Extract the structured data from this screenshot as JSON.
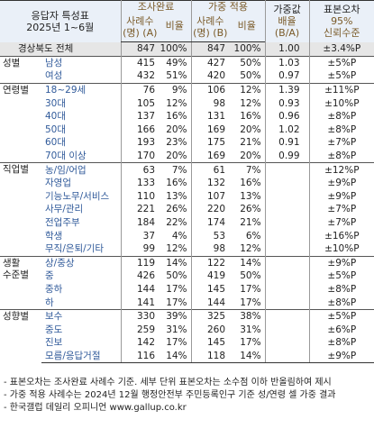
{
  "header": {
    "title_line1": "응답자 특성표",
    "title_line2": "2025년 1~6월",
    "completed_group": "조사완료",
    "weighted_group": "가중 적용",
    "weight_ratio_l1": "가중값",
    "weight_ratio_l2": "배율",
    "weight_ratio_l3": "(B/A)",
    "std_err_l1": "표본오차",
    "std_err_l2": "95%",
    "std_err_l3": "신뢰수준",
    "count_a_l1": "사례수",
    "count_a_l2": "(명) (A)",
    "ratio_label": "비율",
    "count_b_l1": "사례수",
    "count_b_l2": "(명) (B)"
  },
  "total": {
    "label": "경상북도 전체",
    "a": "847",
    "ra": "100%",
    "b": "847",
    "rb": "100%",
    "w": "1.00",
    "e": "±3.4%P"
  },
  "sections": [
    {
      "name": "성별",
      "rows": [
        {
          "label": "남성",
          "a": "415",
          "ra": "49%",
          "b": "427",
          "rb": "50%",
          "w": "1.03",
          "e": "±5%P"
        },
        {
          "label": "여성",
          "a": "432",
          "ra": "51%",
          "b": "420",
          "rb": "50%",
          "w": "0.97",
          "e": "±5%P"
        }
      ]
    },
    {
      "name": "연령별",
      "rows": [
        {
          "label": "18~29세",
          "a": "76",
          "ra": "9%",
          "b": "106",
          "rb": "12%",
          "w": "1.39",
          "e": "±11%P"
        },
        {
          "label": "30대",
          "a": "105",
          "ra": "12%",
          "b": "98",
          "rb": "12%",
          "w": "0.93",
          "e": "±10%P"
        },
        {
          "label": "40대",
          "a": "137",
          "ra": "16%",
          "b": "131",
          "rb": "16%",
          "w": "0.96",
          "e": "±8%P"
        },
        {
          "label": "50대",
          "a": "166",
          "ra": "20%",
          "b": "169",
          "rb": "20%",
          "w": "1.02",
          "e": "±8%P"
        },
        {
          "label": "60대",
          "a": "193",
          "ra": "23%",
          "b": "175",
          "rb": "21%",
          "w": "0.91",
          "e": "±7%P"
        },
        {
          "label": "70대 이상",
          "a": "170",
          "ra": "20%",
          "b": "169",
          "rb": "20%",
          "w": "0.99",
          "e": "±8%P"
        }
      ]
    },
    {
      "name": "직업별",
      "rows": [
        {
          "label": "농/임/어업",
          "a": "63",
          "ra": "7%",
          "b": "61",
          "rb": "7%",
          "w": "",
          "e": "±12%P"
        },
        {
          "label": "자영업",
          "a": "133",
          "ra": "16%",
          "b": "132",
          "rb": "16%",
          "w": "",
          "e": "±9%P"
        },
        {
          "label": "기능노무/서비스",
          "a": "110",
          "ra": "13%",
          "b": "107",
          "rb": "13%",
          "w": "",
          "e": "±9%P"
        },
        {
          "label": "사무/관리",
          "a": "221",
          "ra": "26%",
          "b": "220",
          "rb": "26%",
          "w": "",
          "e": "±7%P"
        },
        {
          "label": "전업주부",
          "a": "184",
          "ra": "22%",
          "b": "174",
          "rb": "21%",
          "w": "",
          "e": "±7%P"
        },
        {
          "label": "학생",
          "a": "37",
          "ra": "4%",
          "b": "53",
          "rb": "6%",
          "w": "",
          "e": "±16%P"
        },
        {
          "label": "무직/은퇴/기타",
          "a": "99",
          "ra": "12%",
          "b": "98",
          "rb": "12%",
          "w": "",
          "e": "±10%P"
        }
      ]
    },
    {
      "name": "생활",
      "name2": "수준별",
      "rows": [
        {
          "label": "상/중상",
          "a": "119",
          "ra": "14%",
          "b": "122",
          "rb": "14%",
          "w": "",
          "e": "±9%P"
        },
        {
          "label": "중",
          "a": "426",
          "ra": "50%",
          "b": "419",
          "rb": "50%",
          "w": "",
          "e": "±5%P"
        },
        {
          "label": "중하",
          "a": "144",
          "ra": "17%",
          "b": "145",
          "rb": "17%",
          "w": "",
          "e": "±8%P"
        },
        {
          "label": "하",
          "a": "141",
          "ra": "17%",
          "b": "144",
          "rb": "17%",
          "w": "",
          "e": "±8%P"
        }
      ]
    },
    {
      "name": "성향별",
      "rows": [
        {
          "label": "보수",
          "a": "330",
          "ra": "39%",
          "b": "325",
          "rb": "38%",
          "w": "",
          "e": "±5%P"
        },
        {
          "label": "중도",
          "a": "259",
          "ra": "31%",
          "b": "260",
          "rb": "31%",
          "w": "",
          "e": "±6%P"
        },
        {
          "label": "진보",
          "a": "142",
          "ra": "17%",
          "b": "145",
          "rb": "17%",
          "w": "",
          "e": "±8%P"
        },
        {
          "label": "모름/응답거절",
          "a": "116",
          "ra": "14%",
          "b": "118",
          "rb": "14%",
          "w": "",
          "e": "±9%P"
        }
      ]
    }
  ],
  "notes": [
    "- 표본오차는 조사완료 사례수 기준. 세부 단위 표본오차는 소수점 이하 반올림하여 제시",
    "- 가중 적용 사례수는 2024년 12월 행정안전부 주민등록인구 기준 성/연령 셀 가중 결과",
    "- 한국갤럽 데일리 오피니언 www.gallup.co.kr"
  ]
}
